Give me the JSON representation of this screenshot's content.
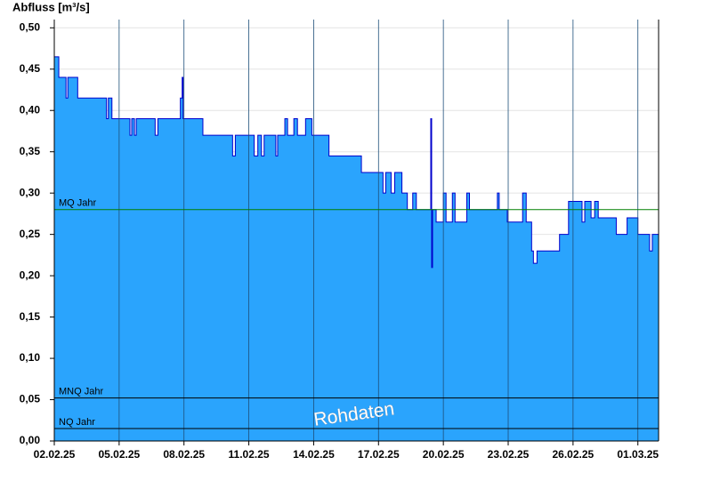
{
  "chart_data": {
    "type": "area",
    "y_label": "Abfluss [m³/s]",
    "annotation": "Rohdaten",
    "color": "#2aa4fd",
    "line_color": "#0000cc",
    "grid": true,
    "ylim": [
      0,
      0.51
    ],
    "yticks": [
      {
        "value": 0,
        "label": "0,00"
      },
      {
        "value": 0.05,
        "label": "0,05"
      },
      {
        "value": 0.1,
        "label": "0,10"
      },
      {
        "value": 0.15,
        "label": "0,15"
      },
      {
        "value": 0.2,
        "label": "0,20"
      },
      {
        "value": 0.25,
        "label": "0,25"
      },
      {
        "value": 0.3,
        "label": "0,30"
      },
      {
        "value": 0.35,
        "label": "0,35"
      },
      {
        "value": 0.4,
        "label": "0,40"
      },
      {
        "value": 0.45,
        "label": "0,45"
      },
      {
        "value": 0.5,
        "label": "0,50"
      }
    ],
    "xlim": [
      "2025-02-02T00:00",
      "2025-03-01T23:00"
    ],
    "xticks": [
      {
        "value": "2025-02-02T00:00",
        "label": "02.02.25"
      },
      {
        "value": "2025-02-05T00:00",
        "label": "05.02.25"
      },
      {
        "value": "2025-02-08T00:00",
        "label": "08.02.25"
      },
      {
        "value": "2025-02-11T00:00",
        "label": "11.02.25"
      },
      {
        "value": "2025-02-14T00:00",
        "label": "14.02.25"
      },
      {
        "value": "2025-02-17T00:00",
        "label": "17.02.25"
      },
      {
        "value": "2025-02-20T00:00",
        "label": "20.02.25"
      },
      {
        "value": "2025-02-23T00:00",
        "label": "23.02.25"
      },
      {
        "value": "2025-02-26T00:00",
        "label": "26.02.25"
      },
      {
        "value": "2025-03-01T00:00",
        "label": "01.03.25"
      }
    ],
    "reference_lines": [
      {
        "label": "MQ Jahr",
        "value": 0.28,
        "color": "#008000"
      },
      {
        "label": "MNQ Jahr",
        "value": 0.052,
        "color": "#000000"
      },
      {
        "label": "NQ Jahr",
        "value": 0.015,
        "color": "#000000"
      }
    ],
    "x": [
      "2025-02-02T00:00",
      "2025-02-02T05:00",
      "2025-02-02T13:00",
      "2025-02-02T15:00",
      "2025-02-03T02:00",
      "2025-02-04T10:00",
      "2025-02-04T12:00",
      "2025-02-04T16:00",
      "2025-02-05T12:00",
      "2025-02-05T14:00",
      "2025-02-05T17:00",
      "2025-02-05T19:00",
      "2025-02-06T16:00",
      "2025-02-06T19:00",
      "2025-02-07T20:00",
      "2025-02-07T22:00",
      "2025-02-07T23:00",
      "2025-02-08T21:00",
      "2025-02-10T06:00",
      "2025-02-10T09:00",
      "2025-02-11T06:00",
      "2025-02-11T10:00",
      "2025-02-11T14:00",
      "2025-02-11T17:00",
      "2025-02-12T06:00",
      "2025-02-12T08:00",
      "2025-02-12T16:00",
      "2025-02-12T19:00",
      "2025-02-13T02:00",
      "2025-02-13T06:00",
      "2025-02-13T15:00",
      "2025-02-13T22:00",
      "2025-02-14T17:00",
      "2025-02-16T05:00",
      "2025-02-17T05:00",
      "2025-02-17T08:00",
      "2025-02-17T14:00",
      "2025-02-17T18:00",
      "2025-02-18T02:00",
      "2025-02-18T08:00",
      "2025-02-18T14:00",
      "2025-02-18T18:00",
      "2025-02-19T10:00",
      "2025-02-19T11:00",
      "2025-02-19T12:00",
      "2025-02-19T16:00",
      "2025-02-20T00:00",
      "2025-02-20T03:00",
      "2025-02-20T10:00",
      "2025-02-20T13:00",
      "2025-02-21T02:00",
      "2025-02-21T05:00",
      "2025-02-22T12:00",
      "2025-02-22T14:00",
      "2025-02-22T23:00",
      "2025-02-23T16:00",
      "2025-02-23T20:00",
      "2025-02-24T02:00",
      "2025-02-24T04:00",
      "2025-02-24T08:00",
      "2025-02-25T09:00",
      "2025-02-25T19:00",
      "2025-02-26T10:00",
      "2025-02-26T13:00",
      "2025-02-26T20:00",
      "2025-02-27T00:00",
      "2025-02-27T04:00",
      "2025-02-28T00:00",
      "2025-02-28T12:00",
      "2025-03-01T00:00",
      "2025-03-01T13:00",
      "2025-03-01T16:00",
      "2025-03-01T23:00"
    ],
    "values": [
      0.465,
      0.44,
      0.415,
      0.44,
      0.415,
      0.39,
      0.415,
      0.39,
      0.37,
      0.39,
      0.37,
      0.39,
      0.37,
      0.39,
      0.415,
      0.44,
      0.39,
      0.37,
      0.345,
      0.37,
      0.345,
      0.37,
      0.345,
      0.37,
      0.345,
      0.37,
      0.39,
      0.37,
      0.39,
      0.37,
      0.39,
      0.37,
      0.345,
      0.325,
      0.3,
      0.325,
      0.3,
      0.325,
      0.3,
      0.28,
      0.3,
      0.28,
      0.39,
      0.21,
      0.28,
      0.265,
      0.3,
      0.265,
      0.3,
      0.265,
      0.3,
      0.28,
      0.3,
      0.28,
      0.265,
      0.3,
      0.265,
      0.23,
      0.215,
      0.23,
      0.25,
      0.29,
      0.265,
      0.29,
      0.27,
      0.29,
      0.27,
      0.25,
      0.27,
      0.25,
      0.23,
      0.25,
      0.25
    ]
  }
}
